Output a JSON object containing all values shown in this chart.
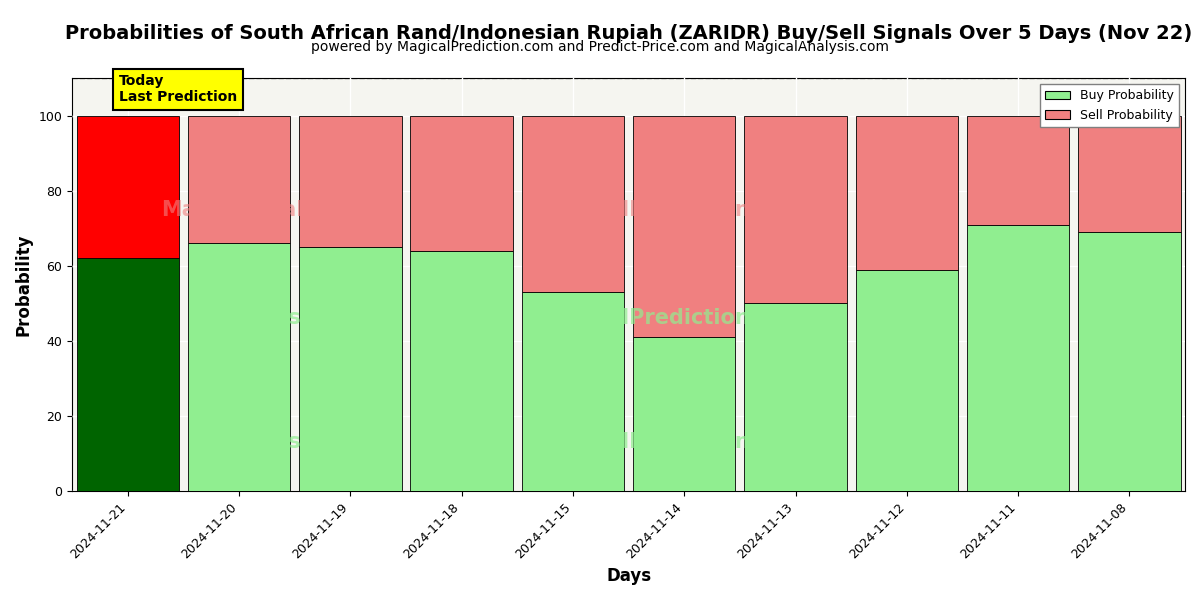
{
  "title": "Probabilities of South African Rand/Indonesian Rupiah (ZARIDR) Buy/Sell Signals Over 5 Days (Nov 22)",
  "subtitle": "powered by MagicalPrediction.com and Predict-Price.com and MagicalAnalysis.com",
  "xlabel": "Days",
  "ylabel": "Probability",
  "categories": [
    "2024-11-21",
    "2024-11-20",
    "2024-11-19",
    "2024-11-18",
    "2024-11-15",
    "2024-11-14",
    "2024-11-13",
    "2024-11-12",
    "2024-11-11",
    "2024-11-08"
  ],
  "buy_values": [
    62,
    66,
    65,
    64,
    53,
    41,
    50,
    59,
    71,
    69
  ],
  "sell_values": [
    38,
    34,
    35,
    36,
    47,
    59,
    50,
    41,
    29,
    31
  ],
  "buy_colors": [
    "#006400",
    "#90EE90",
    "#90EE90",
    "#90EE90",
    "#90EE90",
    "#90EE90",
    "#90EE90",
    "#90EE90",
    "#90EE90",
    "#90EE90"
  ],
  "sell_colors": [
    "#FF0000",
    "#F08080",
    "#F08080",
    "#F08080",
    "#F08080",
    "#F08080",
    "#F08080",
    "#F08080",
    "#F08080",
    "#F08080"
  ],
  "legend_buy_color": "#90EE90",
  "legend_sell_color": "#F08080",
  "today_label_bg": "#FFFF00",
  "today_label_text": "Today\nLast Prediction",
  "ylim": [
    0,
    110
  ],
  "dashed_line_y": 110,
  "plot_bg_color": "#f5f5f0",
  "grid_color": "#ffffff",
  "title_fontsize": 14,
  "subtitle_fontsize": 10,
  "axis_label_fontsize": 12,
  "tick_fontsize": 9,
  "bar_width": 0.92
}
